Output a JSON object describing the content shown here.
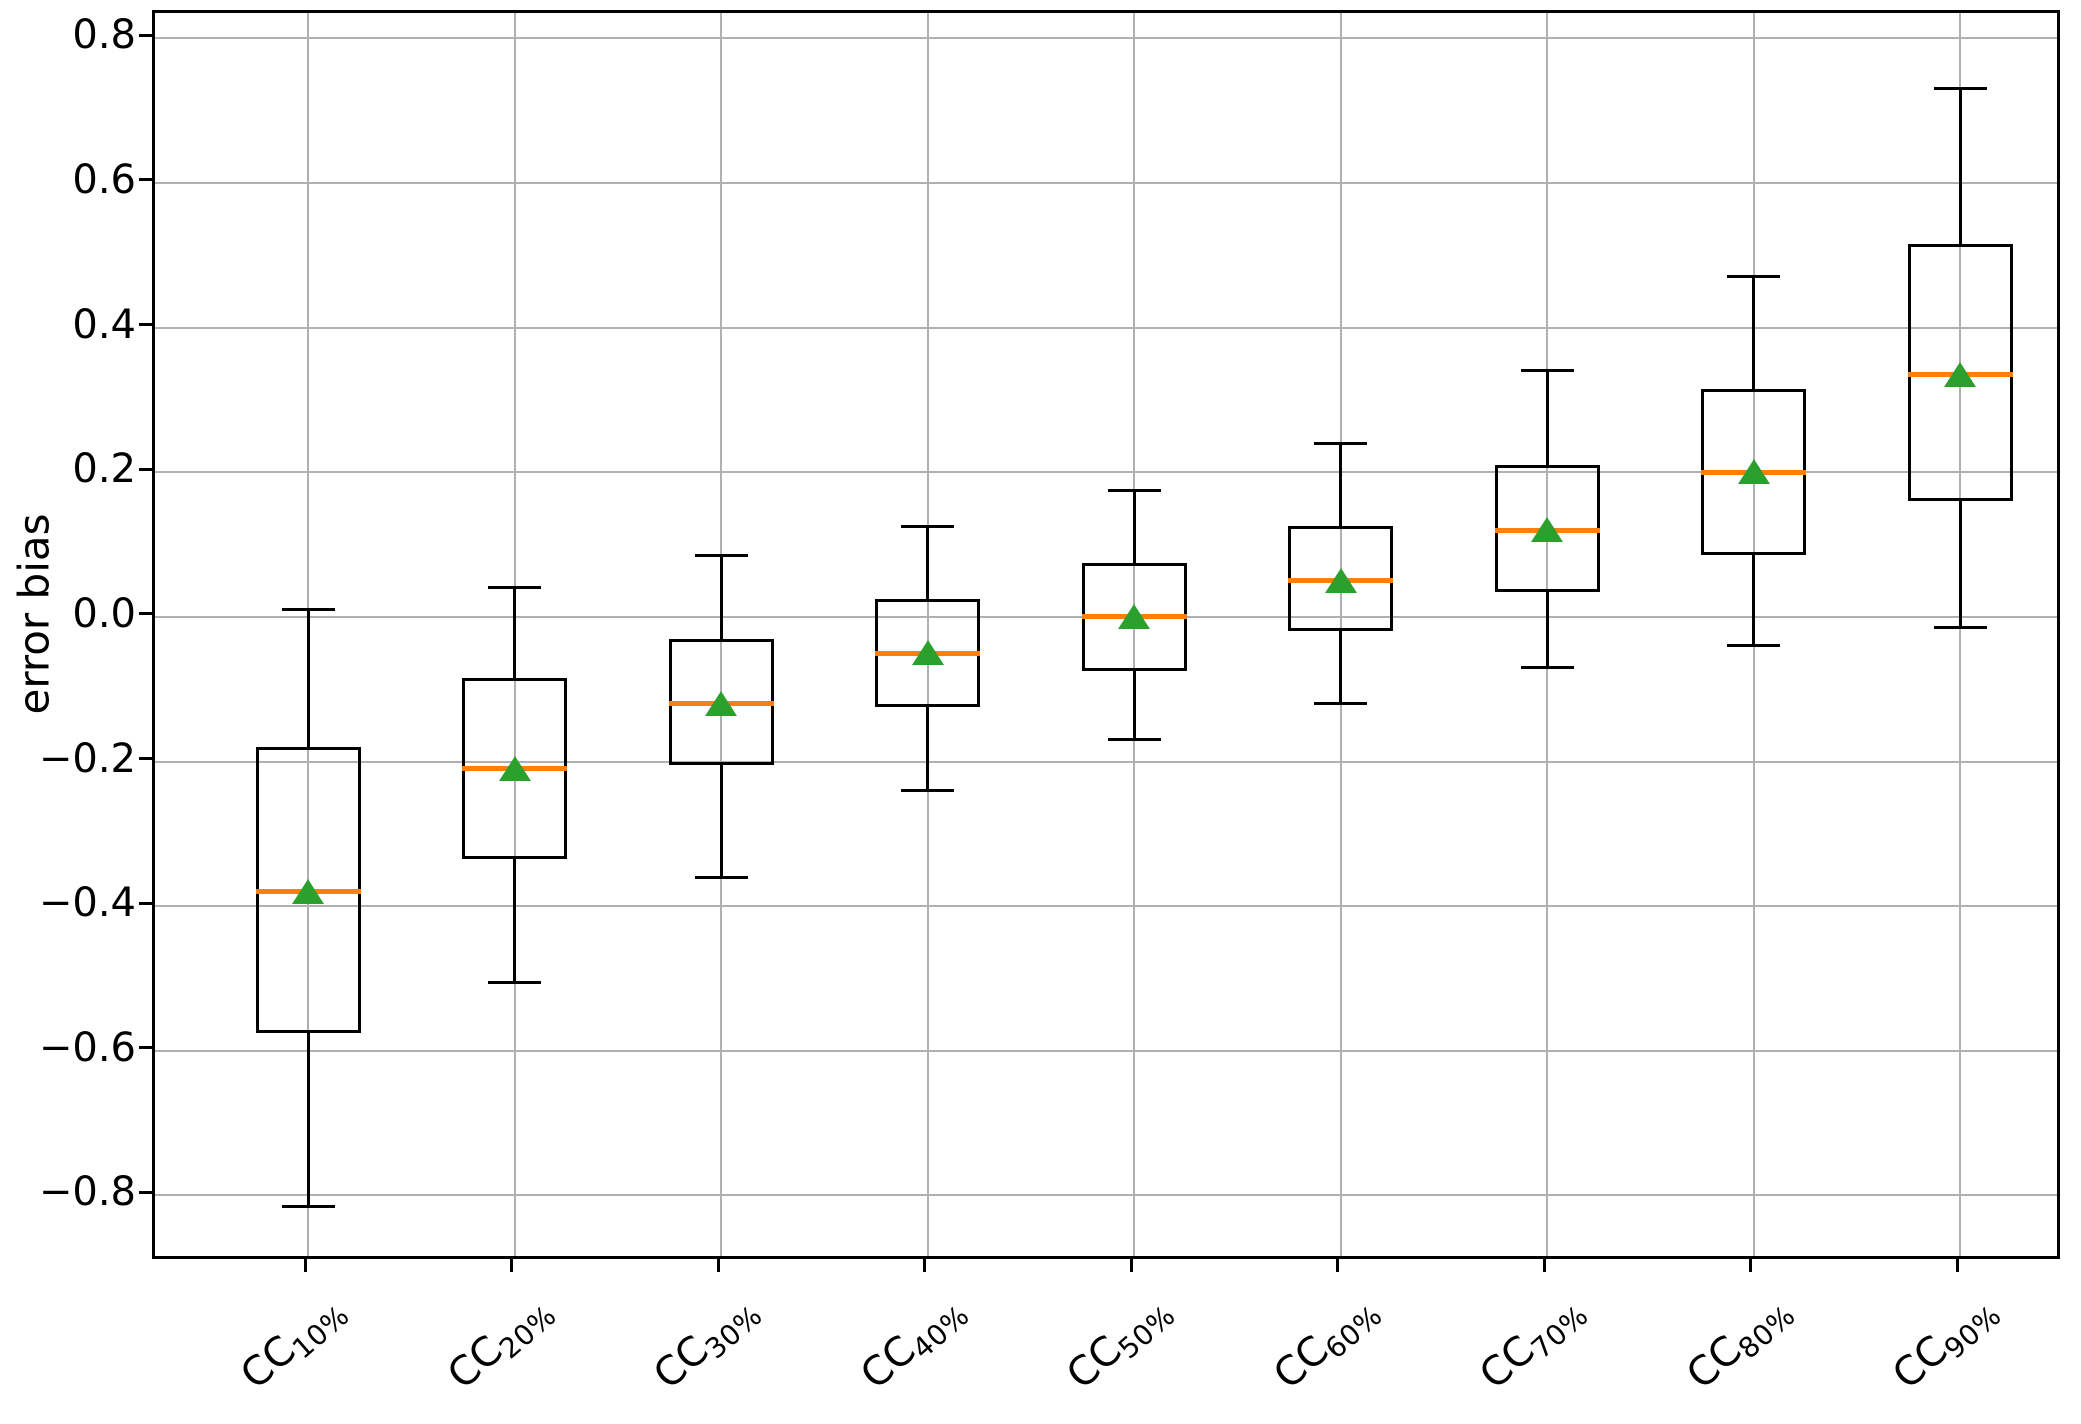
{
  "chart_data": {
    "type": "boxplot",
    "title": "",
    "xlabel": "",
    "ylabel": "error bias",
    "grid": true,
    "legend": null,
    "ylim": [
      -0.892,
      0.835
    ],
    "y_ticks": [
      {
        "v": 0.8,
        "label": "0.8"
      },
      {
        "v": 0.6,
        "label": "0.6"
      },
      {
        "v": 0.4,
        "label": "0.4"
      },
      {
        "v": 0.2,
        "label": "0.2"
      },
      {
        "v": 0.0,
        "label": "0.0"
      },
      {
        "v": -0.2,
        "label": "−0.2"
      },
      {
        "v": -0.4,
        "label": "−0.4"
      },
      {
        "v": -0.6,
        "label": "−0.6"
      },
      {
        "v": -0.8,
        "label": "−0.8"
      }
    ],
    "categories": [
      {
        "base": "CC",
        "sub": "10%"
      },
      {
        "base": "CC",
        "sub": "20%"
      },
      {
        "base": "CC",
        "sub": "30%"
      },
      {
        "base": "CC",
        "sub": "40%"
      },
      {
        "base": "CC",
        "sub": "50%"
      },
      {
        "base": "CC",
        "sub": "60%"
      },
      {
        "base": "CC",
        "sub": "70%"
      },
      {
        "base": "CC",
        "sub": "80%"
      },
      {
        "base": "CC",
        "sub": "90%"
      }
    ],
    "series": [
      {
        "label": "CC 10%",
        "whislo": -0.815,
        "q1": -0.575,
        "med": -0.38,
        "mean": -0.38,
        "q3": -0.18,
        "whishi": 0.01
      },
      {
        "label": "CC 20%",
        "whislo": -0.505,
        "q1": -0.335,
        "med": -0.21,
        "mean": -0.21,
        "q3": -0.085,
        "whishi": 0.04
      },
      {
        "label": "CC 30%",
        "whislo": -0.36,
        "q1": -0.205,
        "med": -0.12,
        "mean": -0.12,
        "q3": -0.03,
        "whishi": 0.085
      },
      {
        "label": "CC 40%",
        "whislo": -0.24,
        "q1": -0.125,
        "med": -0.05,
        "mean": -0.05,
        "q3": 0.025,
        "whishi": 0.125
      },
      {
        "label": "CC 50%",
        "whislo": -0.17,
        "q1": -0.075,
        "med": 0.0,
        "mean": 0.0,
        "q3": 0.075,
        "whishi": 0.175
      },
      {
        "label": "CC 60%",
        "whislo": -0.12,
        "q1": -0.02,
        "med": 0.05,
        "mean": 0.05,
        "q3": 0.125,
        "whishi": 0.24
      },
      {
        "label": "CC 70%",
        "whislo": -0.07,
        "q1": 0.035,
        "med": 0.12,
        "mean": 0.12,
        "q3": 0.21,
        "whishi": 0.34
      },
      {
        "label": "CC 80%",
        "whislo": -0.04,
        "q1": 0.085,
        "med": 0.2,
        "mean": 0.2,
        "q3": 0.315,
        "whishi": 0.47
      },
      {
        "label": "CC 90%",
        "whislo": -0.015,
        "q1": 0.16,
        "med": 0.335,
        "mean": 0.335,
        "q3": 0.515,
        "whishi": 0.73
      }
    ],
    "colors": {
      "median": "#ff7f0e",
      "mean": "#2ca02c",
      "box": "#000000",
      "grid": "#b0b0b0"
    }
  }
}
